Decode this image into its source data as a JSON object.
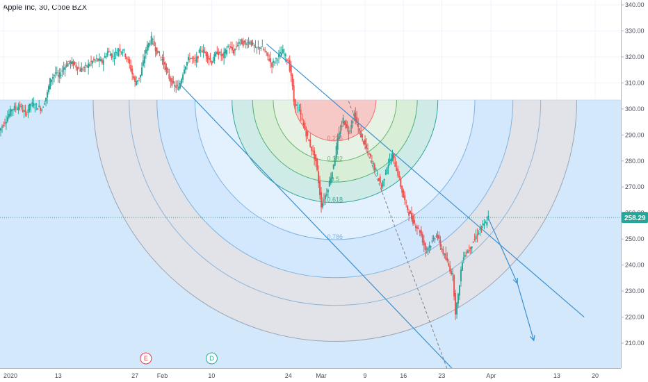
{
  "header": {
    "title": "Apple Inc, 30, Cboe BZX"
  },
  "chart_data": {
    "type": "candlestick",
    "title": "Apple Inc, 30, Cboe BZX",
    "symbol": "Apple Inc",
    "interval": "30",
    "exchange": "Cboe BZX",
    "ylim": [
      200,
      342
    ],
    "y_ticks": [
      210,
      220,
      230,
      240,
      250,
      260,
      270,
      280,
      290,
      300,
      310,
      320,
      330,
      340
    ],
    "x_ticks": [
      {
        "label": "2020",
        "day": 0
      },
      {
        "label": "13",
        "day": 10
      },
      {
        "label": "27",
        "day": 24
      },
      {
        "label": "Feb",
        "day": 29
      },
      {
        "label": "10",
        "day": 38
      },
      {
        "label": "24",
        "day": 52
      },
      {
        "label": "Mar",
        "day": 58
      },
      {
        "label": "9",
        "day": 66
      },
      {
        "label": "16",
        "day": 73
      },
      {
        "label": "23",
        "day": 80
      },
      {
        "label": "Apr",
        "day": 89
      },
      {
        "label": "13",
        "day": 101
      },
      {
        "label": "20",
        "day": 108
      }
    ],
    "xlim_days": [
      0,
      112
    ],
    "last_price": 258.29,
    "last_price_label": "258.29",
    "price_path": [
      [
        -1,
        291
      ],
      [
        0.5,
        296
      ],
      [
        1.5,
        300
      ],
      [
        3,
        301
      ],
      [
        4,
        298
      ],
      [
        5,
        302
      ],
      [
        6,
        301
      ],
      [
        7,
        300
      ],
      [
        8,
        306
      ],
      [
        8.5,
        311
      ],
      [
        9.5,
        314
      ],
      [
        10,
        312
      ],
      [
        11,
        316
      ],
      [
        12,
        318
      ],
      [
        13,
        317
      ],
      [
        14,
        315
      ],
      [
        15,
        316
      ],
      [
        16,
        318
      ],
      [
        17,
        319
      ],
      [
        18,
        318
      ],
      [
        19,
        322
      ],
      [
        20,
        320
      ],
      [
        21,
        323
      ],
      [
        22,
        322
      ],
      [
        23,
        317
      ],
      [
        24,
        310
      ],
      [
        25,
        313
      ],
      [
        25.5,
        318
      ],
      [
        26,
        323
      ],
      [
        27,
        327
      ],
      [
        28,
        322
      ],
      [
        29,
        319
      ],
      [
        30,
        313
      ],
      [
        31,
        309
      ],
      [
        32,
        308
      ],
      [
        33,
        316
      ],
      [
        34,
        320
      ],
      [
        35,
        318
      ],
      [
        36,
        323
      ],
      [
        37,
        321
      ],
      [
        38,
        318
      ],
      [
        39,
        322
      ],
      [
        40,
        320
      ],
      [
        41,
        324
      ],
      [
        42,
        322
      ],
      [
        43,
        326
      ],
      [
        44,
        325
      ],
      [
        45,
        326
      ],
      [
        46,
        323
      ],
      [
        47,
        324
      ],
      [
        48,
        321
      ],
      [
        49,
        317
      ],
      [
        50,
        320
      ],
      [
        51,
        322
      ],
      [
        52,
        318
      ],
      [
        52.5,
        313
      ],
      [
        53,
        303
      ],
      [
        54,
        299
      ],
      [
        55,
        292
      ],
      [
        56,
        286
      ],
      [
        57,
        280
      ],
      [
        57.5,
        272
      ],
      [
        58,
        263
      ],
      [
        59,
        268
      ],
      [
        60,
        276
      ],
      [
        61,
        288
      ],
      [
        62,
        296
      ],
      [
        63,
        291
      ],
      [
        64,
        298
      ],
      [
        65,
        291
      ],
      [
        66,
        286
      ],
      [
        67,
        281
      ],
      [
        68,
        276
      ],
      [
        69,
        270
      ],
      [
        70,
        278
      ],
      [
        71,
        282
      ],
      [
        72,
        275
      ],
      [
        73,
        266
      ],
      [
        74,
        260
      ],
      [
        75,
        256
      ],
      [
        76,
        253
      ],
      [
        77,
        246
      ],
      [
        78,
        248
      ],
      [
        79,
        252
      ],
      [
        80,
        246
      ],
      [
        81,
        241
      ],
      [
        82,
        236
      ],
      [
        82.5,
        222
      ],
      [
        83,
        228
      ],
      [
        83.5,
        238
      ],
      [
        84,
        244
      ],
      [
        85,
        246
      ],
      [
        86,
        250
      ],
      [
        87,
        254
      ],
      [
        88,
        256
      ],
      [
        88.5,
        258.29
      ]
    ],
    "fib_levels": [
      0.236,
      0.382,
      0.5,
      0.618,
      0.786
    ],
    "fib_level_labels": [
      "0.236",
      "0.382",
      "0.5",
      "0.618",
      "0.786"
    ],
    "event_markers": [
      {
        "text": "E",
        "day": 26,
        "color": "#f23645"
      },
      {
        "text": "D",
        "day": 38,
        "color": "#26a69a"
      }
    ],
    "colors": {
      "up": "#26a69a",
      "down": "#ef5350",
      "trendline": "#3a8fd0",
      "price_line": "#26a69a",
      "grid": "#f0f3fa",
      "zone_outer": "#e1e3e8",
      "zone_blue": "#d4e8fb",
      "zone_green": "#dff0dd",
      "zone_red": "#f8c9c7"
    }
  }
}
